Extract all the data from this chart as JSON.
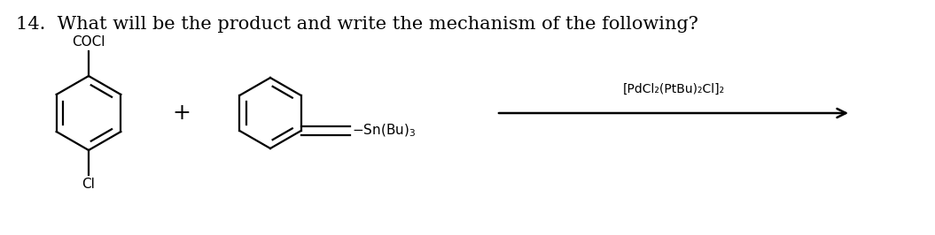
{
  "title": "14.  What will be the product and write the mechanism of the following?",
  "title_fontsize": 15,
  "bg_color": "#ffffff",
  "text_color": "#000000",
  "label_coci": "COCl",
  "label_cl": "Cl",
  "label_catalyst": "[PdCl₂(PtBu)₂Cl]₂"
}
